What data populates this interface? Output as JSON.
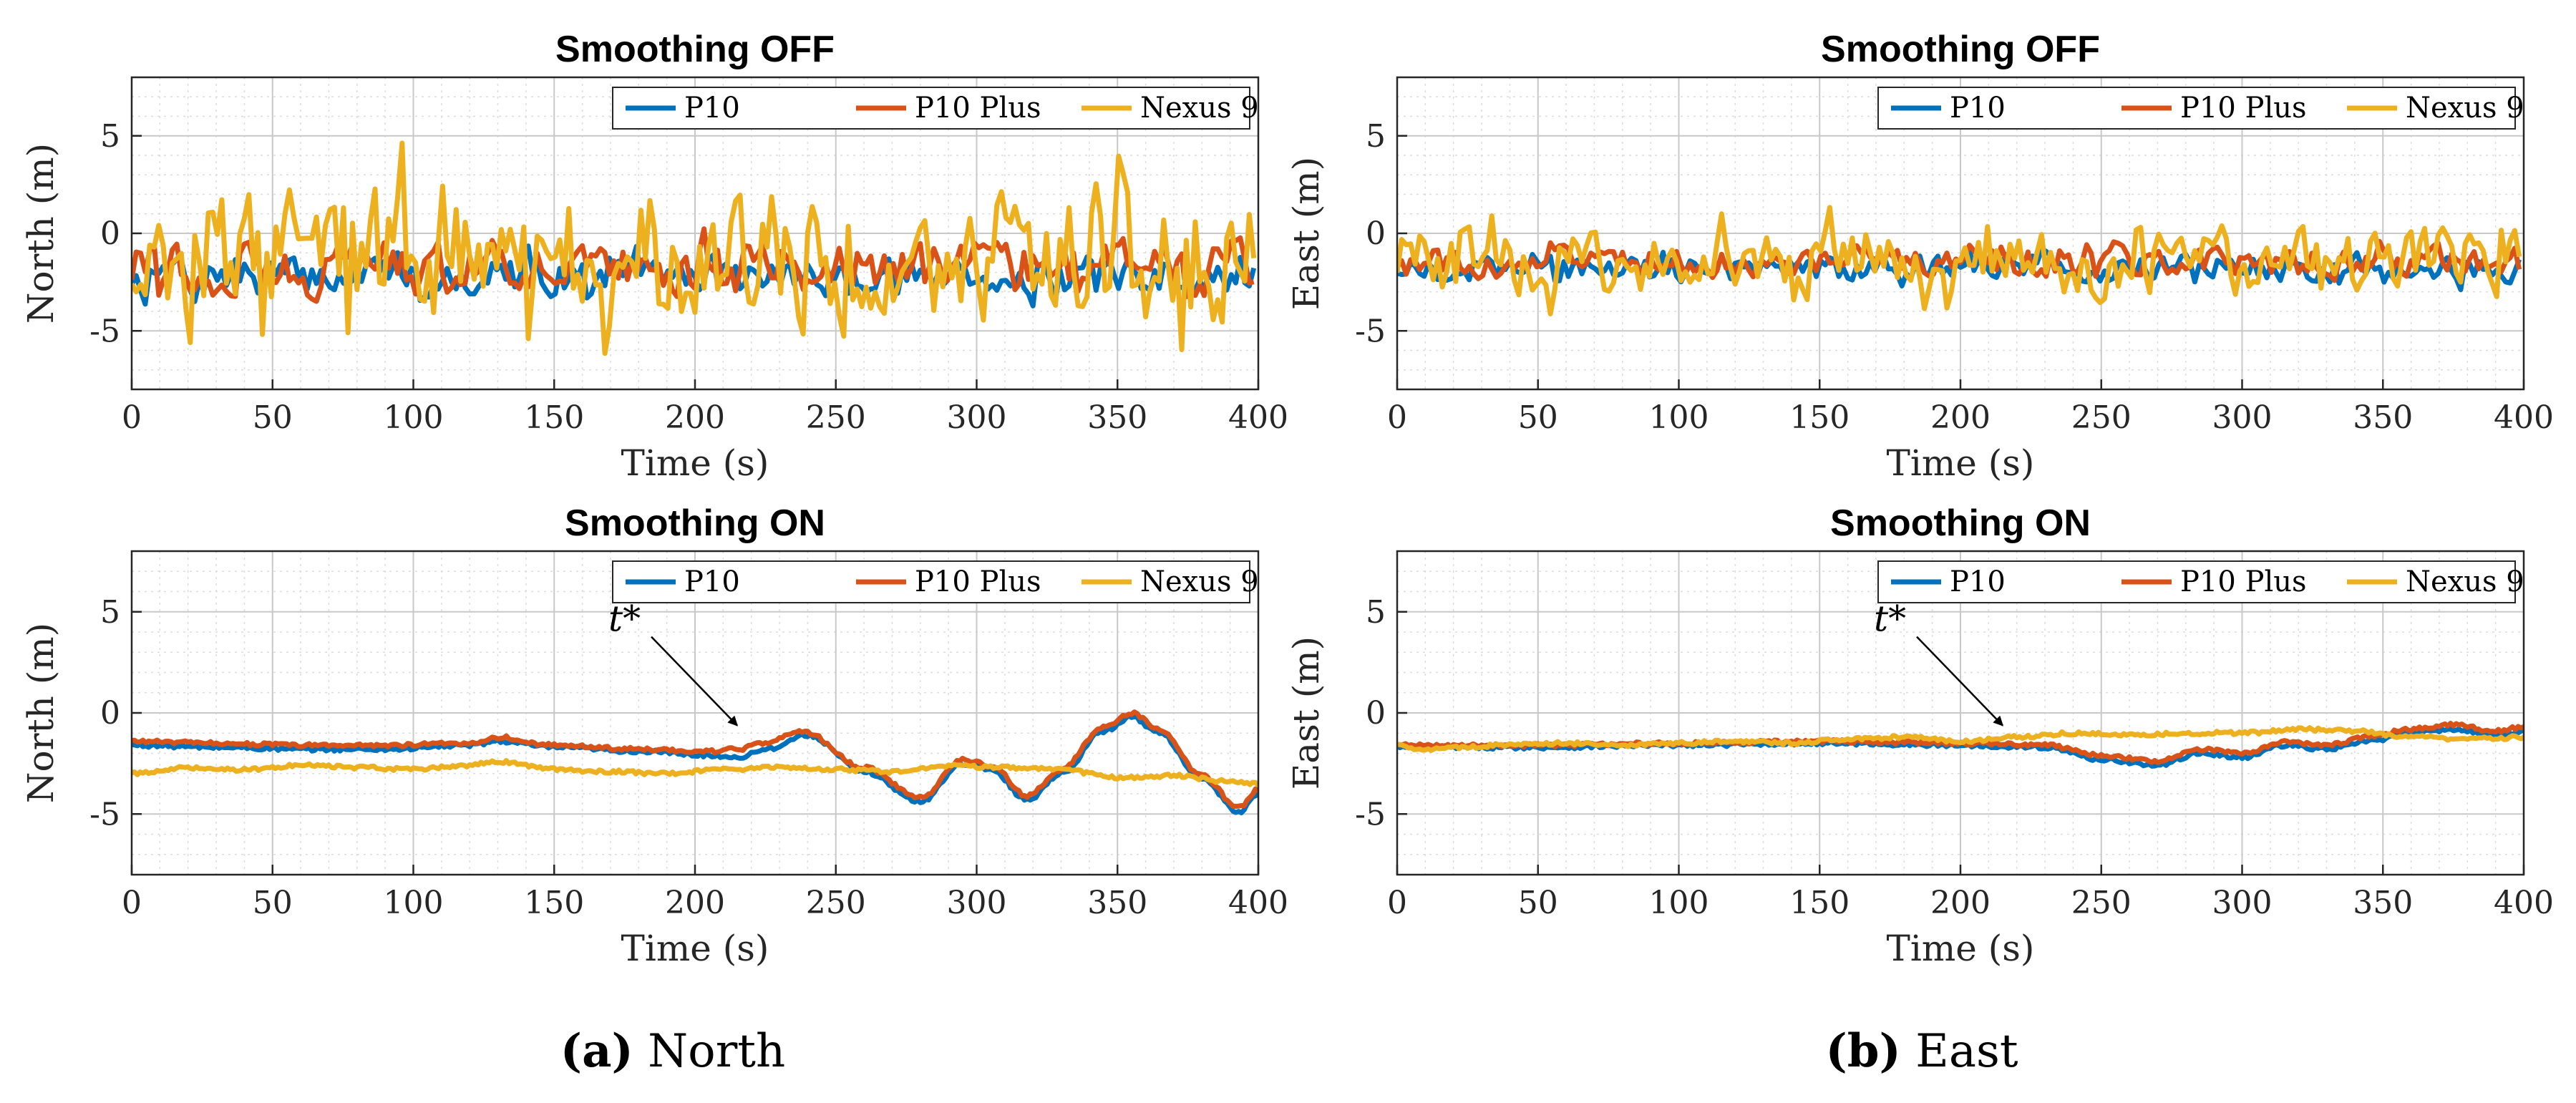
{
  "chart_data": [
    {
      "id": "north_off",
      "type": "line",
      "title": "Smoothing OFF",
      "xlabel": "Time (s)",
      "ylabel": "North (m)",
      "xlim": [
        0,
        400
      ],
      "ylim": [
        -8,
        8
      ],
      "xticks": [
        0,
        50,
        100,
        150,
        200,
        250,
        300,
        350,
        400
      ],
      "yticks": [
        5,
        0,
        -5
      ],
      "grid": "on",
      "legend": "top-right",
      "series": [
        {
          "name": "P10",
          "color": "#0072BD",
          "base": -2.2,
          "noise": 1.3
        },
        {
          "name": "P10 Plus",
          "color": "#D95319",
          "base": -1.8,
          "noise": 1.8
        },
        {
          "name": "Nexus 9",
          "color": "#EDB120",
          "base": -1.2,
          "noise": 4.6
        }
      ]
    },
    {
      "id": "east_off",
      "type": "line",
      "title": "Smoothing OFF",
      "xlabel": "Time (s)",
      "ylabel": "East (m)",
      "xlim": [
        0,
        400
      ],
      "ylim": [
        -8,
        8
      ],
      "xticks": [
        0,
        50,
        100,
        150,
        200,
        250,
        300,
        350,
        400
      ],
      "yticks": [
        5,
        0,
        -5
      ],
      "grid": "on",
      "legend": "top-right",
      "series": [
        {
          "name": "P10",
          "color": "#0072BD",
          "base": -1.8,
          "noise": 0.9
        },
        {
          "name": "P10 Plus",
          "color": "#D95319",
          "base": -1.5,
          "noise": 1.0
        },
        {
          "name": "Nexus 9",
          "color": "#EDB120",
          "base": -1.5,
          "noise": 2.2
        }
      ]
    },
    {
      "id": "north_on",
      "type": "line",
      "title": "Smoothing ON",
      "xlabel": "Time (s)",
      "ylabel": "North (m)",
      "xlim": [
        0,
        400
      ],
      "ylim": [
        -8,
        8
      ],
      "xticks": [
        0,
        50,
        100,
        150,
        200,
        250,
        300,
        350,
        400
      ],
      "yticks": [
        5,
        0,
        -5
      ],
      "grid": "on",
      "legend": "top-right",
      "annotation": {
        "text": "t*",
        "x": 215,
        "y": -0.2
      },
      "series": [
        {
          "name": "P10",
          "color": "#0072BD",
          "x": [
            0,
            30,
            60,
            90,
            120,
            130,
            150,
            180,
            205,
            215,
            225,
            240,
            260,
            280,
            295,
            305,
            318,
            330,
            345,
            355,
            365,
            380,
            393,
            400
          ],
          "y": [
            -1.6,
            -1.7,
            -1.8,
            -1.8,
            -1.6,
            -1.4,
            -1.7,
            -1.9,
            -2.1,
            -2.2,
            -1.8,
            -1.1,
            -2.9,
            -4.4,
            -2.5,
            -2.8,
            -4.3,
            -3.0,
            -0.9,
            -0.2,
            -1.0,
            -3.3,
            -4.9,
            -4.0
          ]
        },
        {
          "name": "P10 Plus",
          "color": "#D95319",
          "x": [
            0,
            30,
            60,
            90,
            120,
            130,
            150,
            180,
            205,
            215,
            225,
            238,
            260,
            280,
            295,
            305,
            318,
            330,
            345,
            355,
            365,
            380,
            393,
            400
          ],
          "y": [
            -1.4,
            -1.5,
            -1.6,
            -1.6,
            -1.5,
            -1.2,
            -1.6,
            -1.8,
            -1.9,
            -1.8,
            -1.5,
            -0.9,
            -2.7,
            -4.2,
            -2.3,
            -2.6,
            -4.1,
            -2.8,
            -0.7,
            0.0,
            -0.8,
            -3.1,
            -4.7,
            -3.8
          ]
        },
        {
          "name": "Nexus 9",
          "color": "#EDB120",
          "x": [
            0,
            20,
            40,
            60,
            80,
            100,
            120,
            130,
            150,
            170,
            190,
            210,
            230,
            250,
            270,
            290,
            310,
            330,
            350,
            370,
            390,
            400
          ],
          "y": [
            -3.0,
            -2.7,
            -2.8,
            -2.6,
            -2.7,
            -2.8,
            -2.6,
            -2.4,
            -2.8,
            -2.9,
            -3.0,
            -2.8,
            -2.7,
            -2.8,
            -2.9,
            -2.6,
            -2.7,
            -2.8,
            -3.2,
            -3.1,
            -3.4,
            -3.5
          ]
        }
      ]
    },
    {
      "id": "east_on",
      "type": "line",
      "title": "Smoothing ON",
      "xlabel": "Time (s)",
      "ylabel": "East (m)",
      "xlim": [
        0,
        400
      ],
      "ylim": [
        -8,
        8
      ],
      "xticks": [
        0,
        50,
        100,
        150,
        200,
        250,
        300,
        350,
        400
      ],
      "yticks": [
        5,
        0,
        -5
      ],
      "grid": "on",
      "legend": "top-right",
      "annotation": {
        "text": "t*",
        "x": 215,
        "y": -0.2
      },
      "series": [
        {
          "name": "P10",
          "color": "#0072BD",
          "x": [
            0,
            50,
            100,
            150,
            200,
            230,
            250,
            270,
            285,
            300,
            315,
            330,
            345,
            360,
            375,
            390,
            400
          ],
          "y": [
            -1.7,
            -1.7,
            -1.6,
            -1.5,
            -1.6,
            -1.7,
            -2.3,
            -2.6,
            -2.0,
            -2.2,
            -1.6,
            -1.8,
            -1.4,
            -1.0,
            -0.8,
            -1.1,
            -0.9
          ]
        },
        {
          "name": "P10 Plus",
          "color": "#D95319",
          "x": [
            0,
            50,
            100,
            150,
            200,
            230,
            250,
            270,
            285,
            300,
            315,
            330,
            345,
            360,
            375,
            390,
            400
          ],
          "y": [
            -1.6,
            -1.6,
            -1.5,
            -1.4,
            -1.5,
            -1.6,
            -2.1,
            -2.4,
            -1.8,
            -2.0,
            -1.4,
            -1.6,
            -1.2,
            -0.8,
            -0.6,
            -0.9,
            -0.7
          ]
        },
        {
          "name": "Nexus 9",
          "color": "#EDB120",
          "x": [
            0,
            10,
            20,
            40,
            60,
            80,
            100,
            120,
            140,
            160,
            180,
            200,
            220,
            240,
            260,
            280,
            300,
            320,
            340,
            360,
            380,
            400
          ],
          "y": [
            -1.6,
            -1.8,
            -1.7,
            -1.6,
            -1.5,
            -1.6,
            -1.5,
            -1.4,
            -1.5,
            -1.3,
            -1.2,
            -1.4,
            -1.2,
            -1.0,
            -1.1,
            -1.0,
            -1.0,
            -0.8,
            -0.9,
            -1.2,
            -1.3,
            -1.2
          ]
        }
      ]
    }
  ],
  "captions": [
    {
      "label": "(a)",
      "text": "North"
    },
    {
      "label": "(b)",
      "text": "East"
    }
  ]
}
